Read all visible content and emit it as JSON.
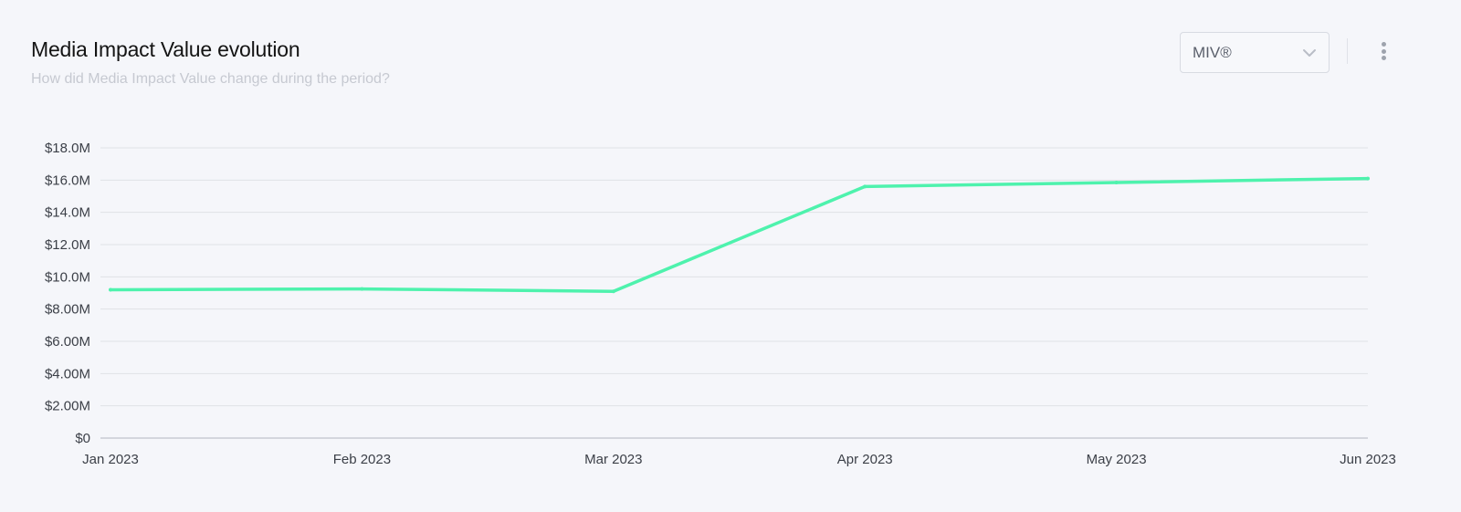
{
  "header": {
    "title": "Media Impact Value evolution",
    "subtitle": "How did Media Impact Value change during the period?"
  },
  "metric_select": {
    "value": "MIV®",
    "icon": "chevron-down-icon"
  },
  "menu": {
    "icon": "kebab-menu-icon"
  },
  "colors": {
    "line": "#4ef2ad",
    "grid": "#dfe1e6",
    "axis": "#c9ccd3",
    "background": "#f5f6fa"
  },
  "chart_data": {
    "type": "line",
    "x": [
      "Jan 2023",
      "Feb 2023",
      "Mar 2023",
      "Apr 2023",
      "May 2023",
      "Jun 2023"
    ],
    "series": [
      {
        "values": [
          9200000,
          9250000,
          9100000,
          15600000,
          15850000,
          16100000
        ]
      }
    ],
    "yticks": [
      "$0",
      "$2.00M",
      "$4.00M",
      "$6.00M",
      "$8.00M",
      "$10.0M",
      "$12.0M",
      "$14.0M",
      "$16.0M",
      "$18.0M"
    ],
    "ylim": [
      0,
      18000000
    ],
    "grid": true,
    "legend": "none"
  }
}
